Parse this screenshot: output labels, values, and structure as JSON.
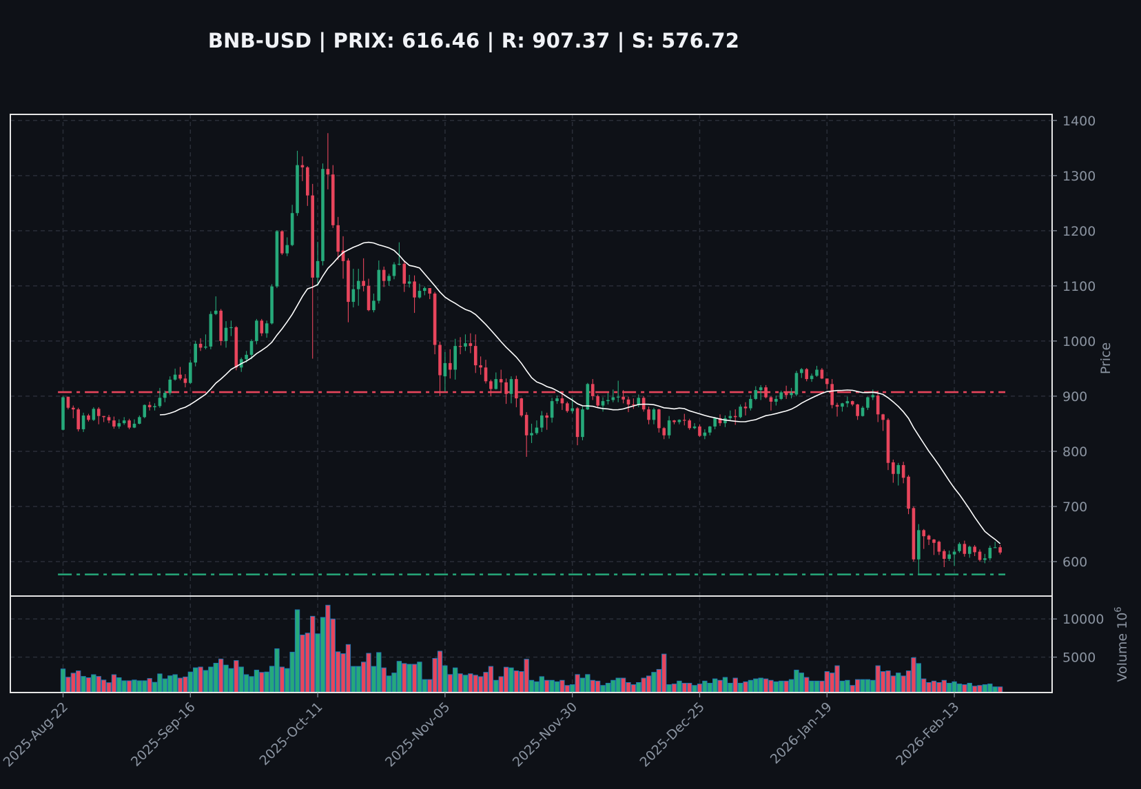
{
  "header": {
    "title": "BNB-USD | PRIX: 616.46 | R: 907.37 | S: 576.72",
    "symbol": "BNB-USD",
    "price": 616.46,
    "resistance": 907.37,
    "support": 576.72
  },
  "colors": {
    "background": "#0e1117",
    "up": "#26a97a",
    "down": "#e8455c",
    "volume_edge": "#1f77b4",
    "ma_line": "#ffffff",
    "resistance_line": "#e8455c",
    "support_line": "#26a97a",
    "grid": "#2a2e38",
    "axis_text": "#8b94a1",
    "frame": "#e6e6e6"
  },
  "chart_data": {
    "type": "candlestick",
    "title": "BNB-USD | PRIX: 616.46 | R: 907.37 | S: 576.72",
    "start_date": "2025-08-22",
    "x_tick_labels": [
      "2025-Aug-22",
      "2025-Sep-16",
      "2025-Oct-11",
      "2025-Nov-05",
      "2025-Nov-30",
      "2025-Dec-25",
      "2026-Jan-19",
      "2026-Feb-13"
    ],
    "x_tick_index": [
      0,
      25,
      50,
      75,
      100,
      125,
      150,
      175
    ],
    "xlim": [
      -10.35,
      194.2
    ],
    "price_panel": {
      "ylabel": "Price",
      "ylim": [
        537.5,
        1411
      ],
      "yticks": [
        600,
        700,
        800,
        900,
        1000,
        1100,
        1200,
        1300,
        1400
      ],
      "grid": true,
      "moving_average": {
        "period": 20,
        "color": "#ffffff"
      },
      "hlines": [
        {
          "name": "Resistance",
          "value": 907.37,
          "style": "dashdot",
          "color": "#e8455c"
        },
        {
          "name": "Support",
          "value": 576.72,
          "style": "dashdot",
          "color": "#26a97a"
        }
      ]
    },
    "volume_panel": {
      "ylabel": "Volume",
      "scale_label": "10^6",
      "ylim": [
        360,
        13000
      ],
      "yticks": [
        5000,
        10000
      ]
    },
    "ohlc": [
      [
        839,
        900,
        838,
        898
      ],
      [
        899,
        899,
        876,
        879
      ],
      [
        879,
        883,
        860,
        876
      ],
      [
        876,
        879,
        836,
        840
      ],
      [
        840,
        870,
        835,
        865
      ],
      [
        865,
        868,
        854,
        857
      ],
      [
        857,
        880,
        855,
        877
      ],
      [
        877,
        880,
        849,
        864
      ],
      [
        864,
        864,
        853,
        862
      ],
      [
        862,
        866,
        851,
        856
      ],
      [
        856,
        863,
        841,
        845
      ],
      [
        845,
        858,
        841,
        851
      ],
      [
        851,
        862,
        848,
        856
      ],
      [
        856,
        859,
        840,
        843
      ],
      [
        843,
        858,
        842,
        850
      ],
      [
        850,
        865,
        849,
        862
      ],
      [
        862,
        885,
        860,
        884
      ],
      [
        884,
        890,
        874,
        880
      ],
      [
        880,
        887,
        874,
        882
      ],
      [
        882,
        915,
        879,
        897
      ],
      [
        897,
        910,
        889,
        906
      ],
      [
        906,
        936,
        902,
        930
      ],
      [
        930,
        950,
        928,
        939
      ],
      [
        939,
        953,
        929,
        932
      ],
      [
        932,
        940,
        916,
        924
      ],
      [
        924,
        965,
        922,
        961
      ],
      [
        961,
        1000,
        954,
        995
      ],
      [
        995,
        1005,
        982,
        988
      ],
      [
        988,
        1012,
        985,
        990
      ],
      [
        990,
        1054,
        985,
        1049
      ],
      [
        1049,
        1081,
        1047,
        1055
      ],
      [
        1055,
        1058,
        992,
        1000
      ],
      [
        1000,
        1036,
        988,
        1024
      ],
      [
        1024,
        1037,
        1009,
        1025
      ],
      [
        1025,
        1027,
        947,
        952
      ],
      [
        952,
        970,
        944,
        967
      ],
      [
        967,
        982,
        961,
        975
      ],
      [
        975,
        1003,
        967,
        1000
      ],
      [
        1000,
        1040,
        994,
        1037
      ],
      [
        1037,
        1040,
        1009,
        1014
      ],
      [
        1014,
        1037,
        1006,
        1032
      ],
      [
        1032,
        1103,
        1030,
        1099
      ],
      [
        1099,
        1201,
        1096,
        1199
      ],
      [
        1199,
        1201,
        1156,
        1159
      ],
      [
        1159,
        1188,
        1154,
        1174
      ],
      [
        1174,
        1247,
        1172,
        1232
      ],
      [
        1232,
        1345,
        1227,
        1319
      ],
      [
        1319,
        1335,
        1290,
        1315
      ],
      [
        1315,
        1317,
        1245,
        1264
      ],
      [
        1264,
        1285,
        968,
        1115
      ],
      [
        1115,
        1180,
        1100,
        1145
      ],
      [
        1145,
        1322,
        1137,
        1312
      ],
      [
        1312,
        1377,
        1275,
        1302
      ],
      [
        1302,
        1319,
        1205,
        1210
      ],
      [
        1210,
        1225,
        1147,
        1162
      ],
      [
        1164,
        1190,
        1113,
        1145
      ],
      [
        1146,
        1150,
        1034,
        1071
      ],
      [
        1071,
        1131,
        1061,
        1094
      ],
      [
        1094,
        1131,
        1064,
        1109
      ],
      [
        1109,
        1150,
        1090,
        1100
      ],
      [
        1100,
        1113,
        1054,
        1056
      ],
      [
        1056,
        1086,
        1052,
        1073
      ],
      [
        1073,
        1146,
        1068,
        1129
      ],
      [
        1129,
        1135,
        1098,
        1109
      ],
      [
        1109,
        1122,
        1100,
        1118
      ],
      [
        1118,
        1143,
        1112,
        1139
      ],
      [
        1139,
        1179,
        1137,
        1140
      ],
      [
        1140,
        1146,
        1089,
        1104
      ],
      [
        1104,
        1120,
        1097,
        1108
      ],
      [
        1108,
        1119,
        1051,
        1079
      ],
      [
        1079,
        1104,
        1077,
        1091
      ],
      [
        1091,
        1099,
        1083,
        1096
      ],
      [
        1096,
        1096,
        1076,
        1086
      ],
      [
        1086,
        1089,
        976,
        993
      ],
      [
        993,
        999,
        900,
        938
      ],
      [
        936,
        980,
        908,
        960
      ],
      [
        960,
        985,
        932,
        948
      ],
      [
        948,
        1004,
        930,
        991
      ],
      [
        991,
        1007,
        976,
        990
      ],
      [
        990,
        1012,
        982,
        996
      ],
      [
        996,
        1014,
        978,
        991
      ],
      [
        991,
        1012,
        942,
        956
      ],
      [
        956,
        972,
        939,
        952
      ],
      [
        952,
        966,
        923,
        927
      ],
      [
        927,
        930,
        900,
        913
      ],
      [
        913,
        943,
        912,
        931
      ],
      [
        931,
        948,
        907,
        925
      ],
      [
        925,
        932,
        886,
        904
      ],
      [
        904,
        936,
        887,
        931
      ],
      [
        931,
        937,
        880,
        896
      ],
      [
        896,
        897,
        862,
        865
      ],
      [
        866,
        871,
        790,
        829
      ],
      [
        829,
        850,
        815,
        833
      ],
      [
        833,
        856,
        830,
        843
      ],
      [
        843,
        873,
        835,
        865
      ],
      [
        865,
        870,
        839,
        861
      ],
      [
        861,
        897,
        852,
        891
      ],
      [
        891,
        901,
        886,
        896
      ],
      [
        896,
        906,
        875,
        887
      ],
      [
        887,
        890,
        870,
        873
      ],
      [
        873,
        897,
        869,
        878
      ],
      [
        878,
        880,
        811,
        826
      ],
      [
        826,
        881,
        820,
        876
      ],
      [
        876,
        924,
        875,
        922
      ],
      [
        922,
        931,
        893,
        900
      ],
      [
        900,
        903,
        880,
        883
      ],
      [
        883,
        898,
        872,
        891
      ],
      [
        891,
        906,
        885,
        893
      ],
      [
        893,
        912,
        889,
        898
      ],
      [
        898,
        928,
        889,
        899
      ],
      [
        899,
        911,
        887,
        894
      ],
      [
        894,
        899,
        871,
        885
      ],
      [
        885,
        896,
        877,
        884
      ],
      [
        884,
        903,
        880,
        897
      ],
      [
        897,
        900,
        872,
        876
      ],
      [
        876,
        881,
        849,
        857
      ],
      [
        857,
        879,
        849,
        876
      ],
      [
        876,
        877,
        834,
        842
      ],
      [
        842,
        844,
        822,
        829
      ],
      [
        829,
        864,
        823,
        856
      ],
      [
        856,
        857,
        849,
        853
      ],
      [
        853,
        858,
        849,
        857
      ],
      [
        857,
        868,
        847,
        856
      ],
      [
        856,
        859,
        839,
        842
      ],
      [
        842,
        851,
        840,
        845
      ],
      [
        845,
        849,
        826,
        828
      ],
      [
        828,
        840,
        822,
        834
      ],
      [
        834,
        846,
        829,
        845
      ],
      [
        845,
        862,
        840,
        860
      ],
      [
        860,
        867,
        846,
        851
      ],
      [
        851,
        865,
        844,
        860
      ],
      [
        860,
        874,
        856,
        864
      ],
      [
        864,
        876,
        848,
        862
      ],
      [
        862,
        885,
        860,
        881
      ],
      [
        881,
        889,
        865,
        878
      ],
      [
        878,
        902,
        874,
        895
      ],
      [
        895,
        918,
        893,
        911
      ],
      [
        911,
        920,
        893,
        916
      ],
      [
        916,
        920,
        896,
        898
      ],
      [
        898,
        900,
        874,
        890
      ],
      [
        890,
        901,
        883,
        895
      ],
      [
        895,
        910,
        893,
        907
      ],
      [
        907,
        919,
        895,
        902
      ],
      [
        902,
        915,
        896,
        906
      ],
      [
        903,
        946,
        900,
        942
      ],
      [
        942,
        951,
        933,
        949
      ],
      [
        949,
        951,
        927,
        931
      ],
      [
        931,
        941,
        926,
        937
      ],
      [
        937,
        955,
        935,
        948
      ],
      [
        948,
        951,
        931,
        932
      ],
      [
        932,
        932,
        913,
        922
      ],
      [
        922,
        931,
        878,
        884
      ],
      [
        884,
        888,
        863,
        881
      ],
      [
        881,
        888,
        872,
        887
      ],
      [
        887,
        899,
        880,
        891
      ],
      [
        891,
        892,
        882,
        885
      ],
      [
        885,
        886,
        857,
        864
      ],
      [
        864,
        882,
        863,
        879
      ],
      [
        879,
        899,
        875,
        898
      ],
      [
        898,
        912,
        893,
        902
      ],
      [
        901,
        910,
        853,
        867
      ],
      [
        867,
        868,
        837,
        857
      ],
      [
        857,
        860,
        766,
        779
      ],
      [
        780,
        785,
        743,
        759
      ],
      [
        759,
        779,
        738,
        775
      ],
      [
        775,
        781,
        742,
        752
      ],
      [
        754,
        757,
        686,
        696
      ],
      [
        697,
        700,
        600,
        604
      ],
      [
        604,
        668,
        576,
        657
      ],
      [
        657,
        659,
        623,
        646
      ],
      [
        647,
        649,
        630,
        640
      ],
      [
        640,
        641,
        612,
        634
      ],
      [
        636,
        638,
        612,
        618
      ],
      [
        619,
        622,
        590,
        605
      ],
      [
        605,
        620,
        601,
        613
      ],
      [
        613,
        622,
        592,
        618
      ],
      [
        619,
        635,
        616,
        632
      ],
      [
        632,
        638,
        609,
        614
      ],
      [
        614,
        629,
        607,
        627
      ],
      [
        627,
        630,
        610,
        617
      ],
      [
        618,
        622,
        600,
        603
      ],
      [
        603,
        614,
        597,
        606
      ],
      [
        606,
        629,
        602,
        625
      ],
      [
        625,
        636,
        625,
        626
      ],
      [
        626,
        630,
        613,
        616.46
      ]
    ],
    "volume": [
      3450,
      2370,
      2900,
      3200,
      2470,
      2300,
      2700,
      2470,
      2000,
      1650,
      2700,
      2300,
      1900,
      1900,
      2000,
      1900,
      1900,
      2200,
      1700,
      2800,
      2150,
      2550,
      2700,
      2250,
      2400,
      3050,
      3600,
      3700,
      3250,
      3700,
      4200,
      4750,
      3950,
      3500,
      4550,
      3700,
      2700,
      2450,
      3300,
      3000,
      3050,
      3800,
      6100,
      3700,
      3500,
      5650,
      11200,
      7900,
      8150,
      10350,
      8050,
      10200,
      11800,
      10000,
      5700,
      5450,
      6650,
      3780,
      3780,
      4350,
      5500,
      3780,
      5600,
      3590,
      2530,
      2920,
      4450,
      4160,
      4060,
      4060,
      4350,
      2060,
      2060,
      4830,
      5780,
      3870,
      2720,
      3590,
      2820,
      2630,
      2820,
      2630,
      2440,
      3010,
      3780,
      1960,
      2440,
      3680,
      3590,
      3200,
      3110,
      4730,
      1960,
      1770,
      2440,
      1960,
      1960,
      1770,
      1960,
      1290,
      1390,
      2720,
      2250,
      2720,
      1960,
      1860,
      1290,
      1580,
      1960,
      2250,
      2250,
      1670,
      1390,
      1670,
      2250,
      2530,
      3010,
      3390,
      5400,
      1390,
      1480,
      1860,
      1580,
      1580,
      1290,
      1480,
      1860,
      1580,
      2150,
      1960,
      2340,
      1580,
      2250,
      1580,
      1770,
      1960,
      2150,
      2250,
      2150,
      1960,
      1770,
      1860,
      1860,
      2060,
      3300,
      2920,
      2340,
      1860,
      1860,
      1860,
      3110,
      2920,
      3870,
      1860,
      1960,
      1290,
      2060,
      2060,
      2060,
      1960,
      3870,
      3110,
      3200,
      2530,
      2920,
      2530,
      3200,
      4920,
      4160,
      2150,
      1670,
      1860,
      1670,
      1960,
      1580,
      1770,
      1480,
      1390,
      1580,
      1200,
      1290,
      1390,
      1480,
      1100,
      1100
    ]
  }
}
